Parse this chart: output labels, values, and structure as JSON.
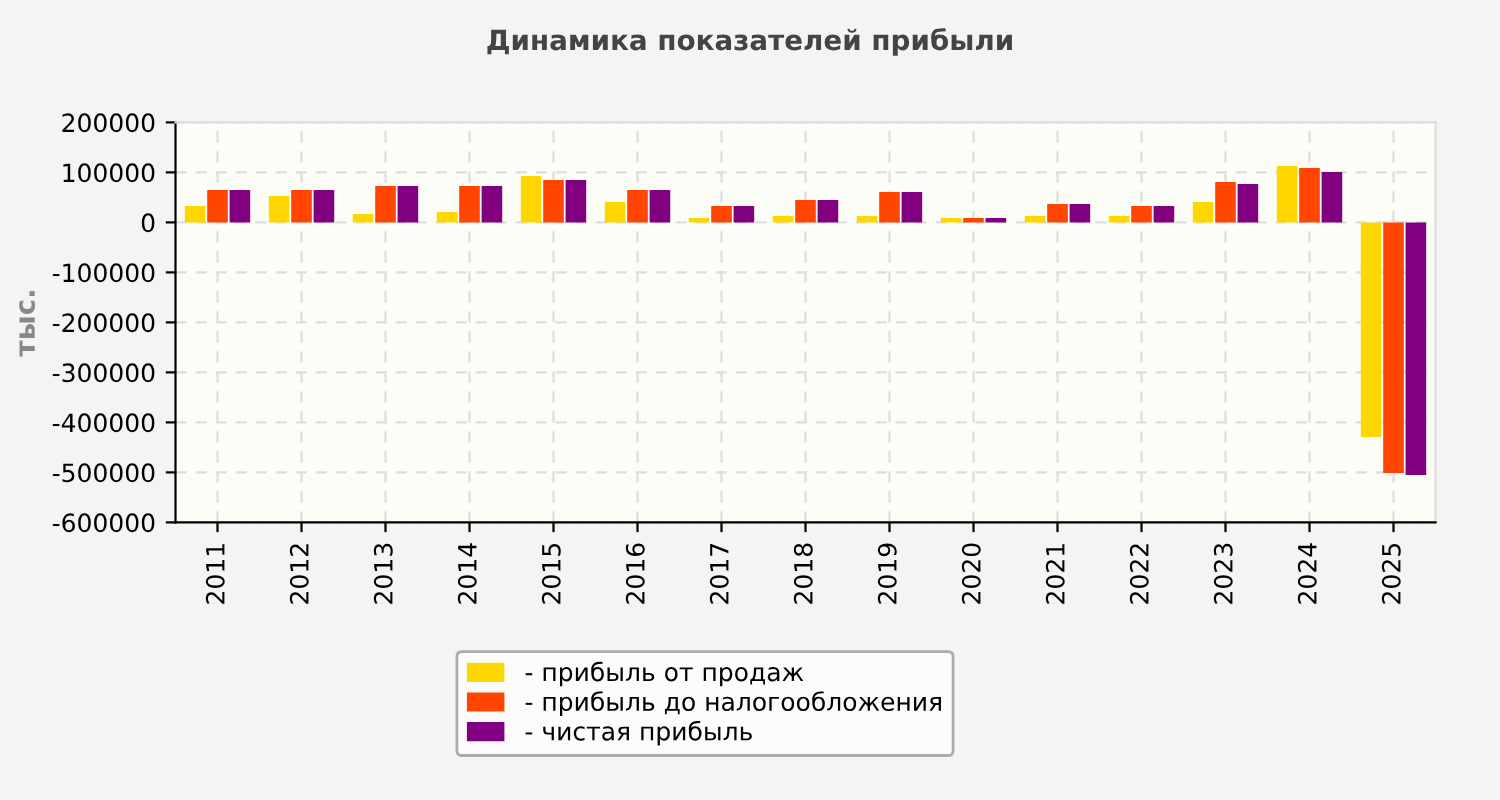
{
  "chart_data": {
    "type": "bar",
    "title": "Динамика показателей прибыли",
    "ylabel": "тыс.",
    "categories": [
      "2011",
      "2012",
      "2013",
      "2014",
      "2015",
      "2016",
      "2017",
      "2018",
      "2019",
      "2020",
      "2021",
      "2022",
      "2023",
      "2024",
      "2025"
    ],
    "series": [
      {
        "name": "- прибыль от продаж",
        "color": "#ffd700",
        "values": [
          33000,
          53000,
          17000,
          21000,
          93000,
          41000,
          9000,
          13000,
          13000,
          9000,
          13000,
          13000,
          41000,
          113000,
          -429000
        ]
      },
      {
        "name": "- прибыль до налогообложения",
        "color": "#ff4500",
        "values": [
          65000,
          65000,
          73000,
          73000,
          85000,
          65000,
          33000,
          45000,
          61000,
          9000,
          37000,
          33000,
          81000,
          109000,
          -501000
        ]
      },
      {
        "name": "- чистая прибыль",
        "color": "#800080",
        "values": [
          65000,
          65000,
          73000,
          73000,
          85000,
          65000,
          33000,
          45000,
          61000,
          9000,
          37000,
          33000,
          77000,
          101000,
          -505000
        ]
      }
    ],
    "ylim": [
      -600000,
      200000
    ],
    "yticks": [
      -600000,
      -500000,
      -400000,
      -300000,
      -200000,
      -100000,
      0,
      100000,
      200000
    ],
    "grid": true,
    "legend": "bottom"
  }
}
